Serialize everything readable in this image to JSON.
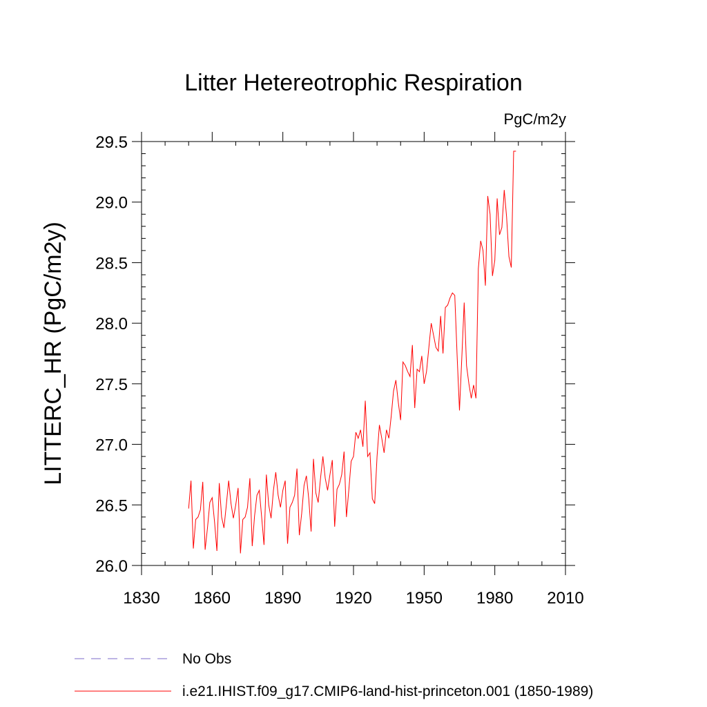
{
  "chart_data": {
    "type": "line",
    "title": "Litter Hetereotrophic Respiration",
    "units_label": "PgC/m2y",
    "ylabel": "LITTERC_HR  (PgC/m2y)",
    "xlabel": "",
    "xlim": [
      1830,
      2010
    ],
    "ylim": [
      26.0,
      29.5
    ],
    "x_ticks": [
      "1830",
      "1860",
      "1890",
      "1920",
      "1950",
      "1980",
      "2010"
    ],
    "y_ticks": [
      "26.0",
      "26.5",
      "27.0",
      "27.5",
      "28.0",
      "28.5",
      "29.0",
      "29.5"
    ],
    "grid": false,
    "legend": {
      "placement": "bottom-left",
      "entries": [
        {
          "name": "No Obs",
          "color": "#7b68c8",
          "style": "dashed"
        },
        {
          "name": "i.e21.IHIST.f09_g17.CMIP6-land-hist-princeton.001 (1850-1989)",
          "color": "#ff0000",
          "style": "solid"
        }
      ]
    },
    "series": [
      {
        "name": "i.e21.IHIST.f09_g17.CMIP6-land-hist-princeton.001 (1850-1989)",
        "color": "#ff0000",
        "x": [
          1850,
          1851,
          1852,
          1853,
          1854,
          1855,
          1856,
          1857,
          1858,
          1859,
          1860,
          1861,
          1862,
          1863,
          1864,
          1865,
          1866,
          1867,
          1868,
          1869,
          1870,
          1871,
          1872,
          1873,
          1874,
          1875,
          1876,
          1877,
          1878,
          1879,
          1880,
          1881,
          1882,
          1883,
          1884,
          1885,
          1886,
          1887,
          1888,
          1889,
          1890,
          1891,
          1892,
          1893,
          1894,
          1895,
          1896,
          1897,
          1898,
          1899,
          1900,
          1901,
          1902,
          1903,
          1904,
          1905,
          1906,
          1907,
          1908,
          1909,
          1910,
          1911,
          1912,
          1913,
          1914,
          1915,
          1916,
          1917,
          1918,
          1919,
          1920,
          1921,
          1922,
          1923,
          1924,
          1925,
          1926,
          1927,
          1928,
          1929,
          1930,
          1931,
          1932,
          1933,
          1934,
          1935,
          1936,
          1937,
          1938,
          1939,
          1940,
          1941,
          1942,
          1943,
          1944,
          1945,
          1946,
          1947,
          1948,
          1949,
          1950,
          1951,
          1952,
          1953,
          1954,
          1955,
          1956,
          1957,
          1958,
          1959,
          1960,
          1961,
          1962,
          1963,
          1964,
          1965,
          1966,
          1967,
          1968,
          1969,
          1970,
          1971,
          1972,
          1973,
          1974,
          1975,
          1976,
          1977,
          1978,
          1979,
          1980,
          1981,
          1982,
          1983,
          1984,
          1985,
          1986,
          1987,
          1988,
          1989
        ],
        "values": [
          26.47,
          26.7,
          26.14,
          26.38,
          26.4,
          26.46,
          26.69,
          26.13,
          26.31,
          26.52,
          26.56,
          26.36,
          26.12,
          26.68,
          26.4,
          26.31,
          26.5,
          26.7,
          26.51,
          26.39,
          26.5,
          26.64,
          26.1,
          26.38,
          26.4,
          26.48,
          26.72,
          26.16,
          26.41,
          26.58,
          26.62,
          26.4,
          26.17,
          26.75,
          26.5,
          26.39,
          26.62,
          26.77,
          26.58,
          26.48,
          26.62,
          26.7,
          26.18,
          26.48,
          26.52,
          26.58,
          26.8,
          26.25,
          26.43,
          26.66,
          26.74,
          26.55,
          26.28,
          26.88,
          26.6,
          26.52,
          26.72,
          26.9,
          26.72,
          26.62,
          26.75,
          26.87,
          26.32,
          26.63,
          26.67,
          26.75,
          26.94,
          26.4,
          26.62,
          26.86,
          26.9,
          27.1,
          27.05,
          27.12,
          26.98,
          27.36,
          26.9,
          26.93,
          26.55,
          26.51,
          26.9,
          27.16,
          27.05,
          26.93,
          27.12,
          27.05,
          27.23,
          27.44,
          27.53,
          27.35,
          27.2,
          27.68,
          27.65,
          27.6,
          27.56,
          27.82,
          27.3,
          27.62,
          27.6,
          27.73,
          27.5,
          27.6,
          27.8,
          28.0,
          27.9,
          27.8,
          27.77,
          28.06,
          27.75,
          28.13,
          28.15,
          28.21,
          28.25,
          28.23,
          27.73,
          27.28,
          27.72,
          28.17,
          27.65,
          27.5,
          27.38,
          27.49,
          27.38,
          28.45,
          28.68,
          28.6,
          28.31,
          29.05,
          28.9,
          28.39,
          28.52,
          29.03,
          28.73,
          28.79,
          29.1,
          28.88,
          28.55,
          28.46,
          29.42,
          29.42
        ]
      }
    ]
  }
}
